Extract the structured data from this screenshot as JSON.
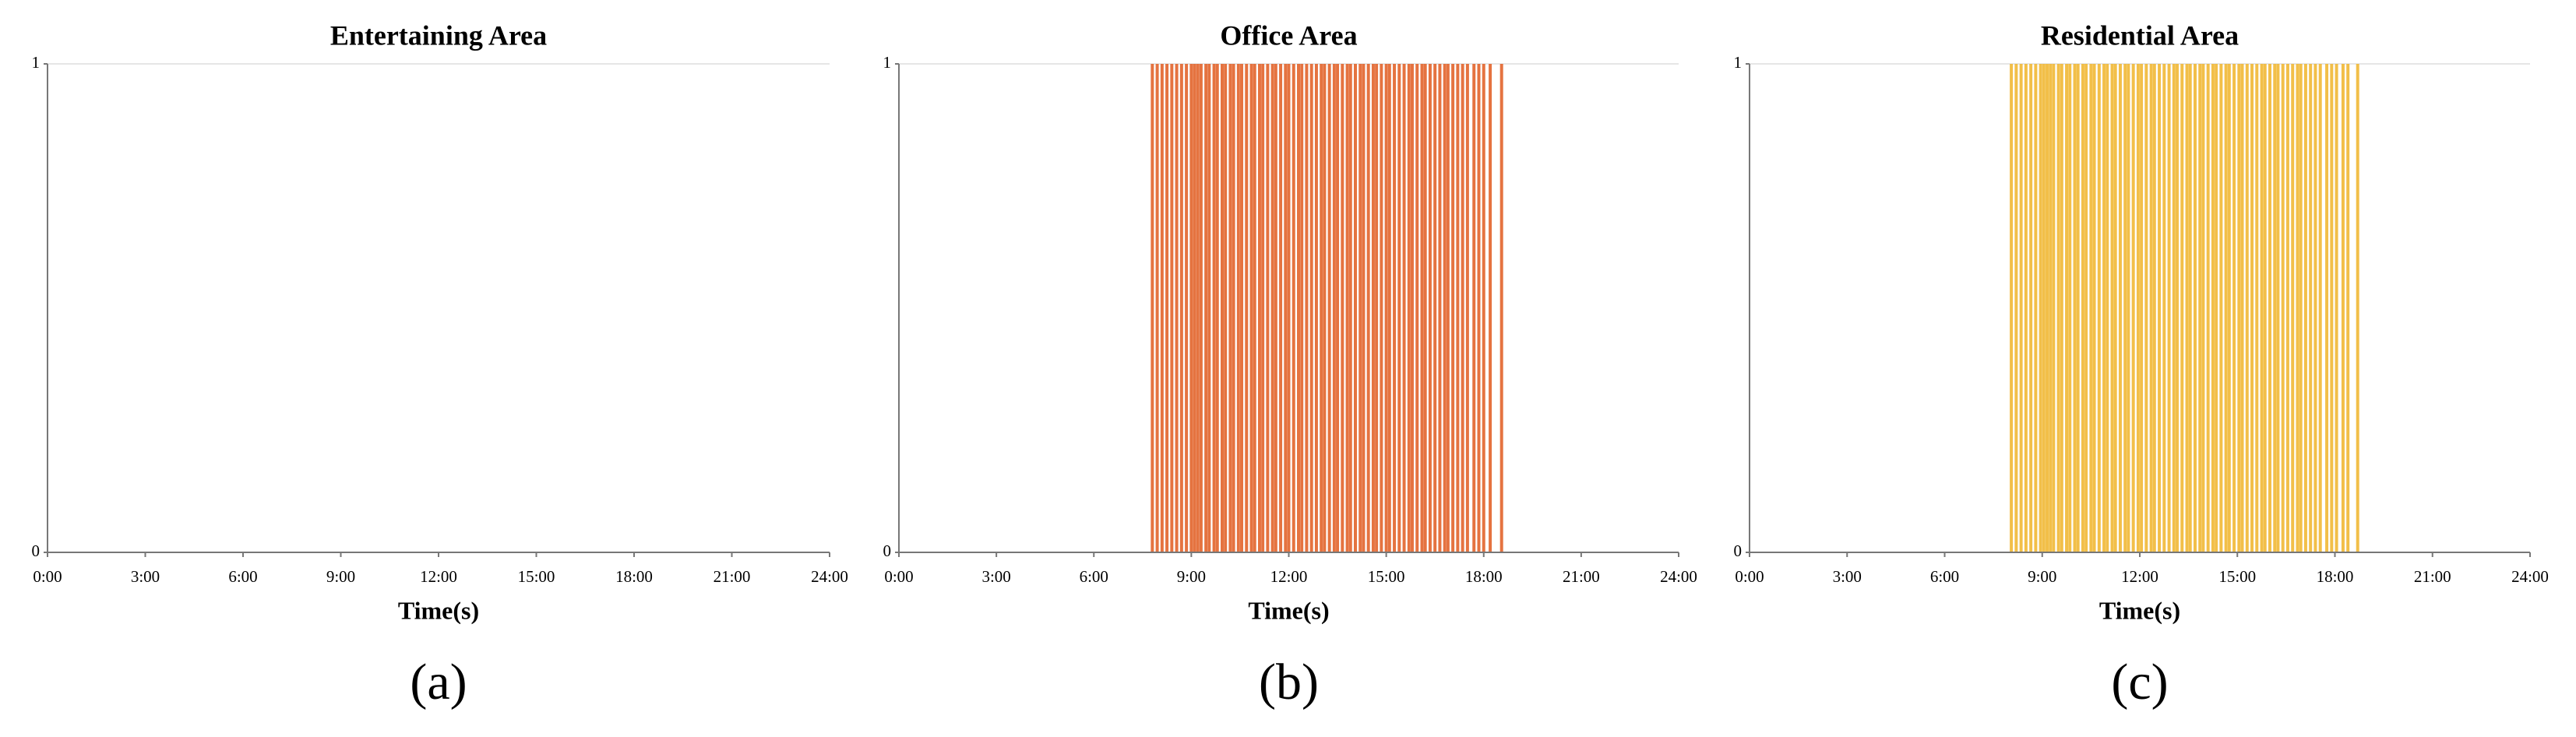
{
  "chart_data": [
    {
      "type": "spike",
      "title": "Entertaining Area",
      "panel_label": "(a)",
      "xlabel": "Time(s)",
      "color": "#e05a1e",
      "x": [],
      "values": [],
      "xlim": [
        0,
        24
      ],
      "xticks": [
        {
          "value": 0,
          "label": "0:00"
        },
        {
          "value": 3,
          "label": "3:00"
        },
        {
          "value": 6,
          "label": "6:00"
        },
        {
          "value": 9,
          "label": "9:00"
        },
        {
          "value": 12,
          "label": "12:00"
        },
        {
          "value": 15,
          "label": "15:00"
        },
        {
          "value": 18,
          "label": "18:00"
        },
        {
          "value": 21,
          "label": "21:00"
        },
        {
          "value": 24,
          "label": "24:00"
        }
      ],
      "ylim": [
        0,
        1
      ],
      "yticks": [
        0,
        1
      ],
      "grid": true
    },
    {
      "type": "spike",
      "title": "Office Area",
      "panel_label": "(b)",
      "xlabel": "Time(s)",
      "color": "#e05a1e",
      "x": [
        7.8,
        7.95,
        8.1,
        8.25,
        8.4,
        8.55,
        8.7,
        8.85,
        9.0,
        9.1,
        9.2,
        9.3,
        9.45,
        9.55,
        9.7,
        9.8,
        9.95,
        10.05,
        10.2,
        10.3,
        10.45,
        10.55,
        10.7,
        10.85,
        10.95,
        11.1,
        11.2,
        11.35,
        11.5,
        11.6,
        11.75,
        11.9,
        12.0,
        12.15,
        12.3,
        12.4,
        12.55,
        12.7,
        12.85,
        13.0,
        13.1,
        13.25,
        13.4,
        13.5,
        13.65,
        13.8,
        13.9,
        14.05,
        14.2,
        14.3,
        14.45,
        14.6,
        14.7,
        14.85,
        15.0,
        15.1,
        15.25,
        15.4,
        15.55,
        15.7,
        15.8,
        15.95,
        16.1,
        16.2,
        16.35,
        16.5,
        16.65,
        16.8,
        16.9,
        17.05,
        17.2,
        17.35,
        17.5,
        17.7,
        17.85,
        18.0,
        18.2,
        18.55
      ],
      "values": [
        1,
        1,
        1,
        1,
        1,
        1,
        1,
        1,
        1,
        1,
        1,
        1,
        1,
        1,
        1,
        1,
        1,
        1,
        1,
        1,
        1,
        1,
        1,
        1,
        1,
        1,
        1,
        1,
        1,
        1,
        1,
        1,
        1,
        1,
        1,
        1,
        1,
        1,
        1,
        1,
        1,
        1,
        1,
        1,
        1,
        1,
        1,
        1,
        1,
        1,
        1,
        1,
        1,
        1,
        1,
        1,
        1,
        1,
        1,
        1,
        1,
        1,
        1,
        1,
        1,
        1,
        1,
        1,
        1,
        1,
        1,
        1,
        1,
        1,
        1,
        1,
        1,
        1
      ],
      "xlim": [
        0,
        24
      ],
      "xticks": [
        {
          "value": 0,
          "label": "0:00"
        },
        {
          "value": 3,
          "label": "3:00"
        },
        {
          "value": 6,
          "label": "6:00"
        },
        {
          "value": 9,
          "label": "9:00"
        },
        {
          "value": 12,
          "label": "12:00"
        },
        {
          "value": 15,
          "label": "15:00"
        },
        {
          "value": 18,
          "label": "18:00"
        },
        {
          "value": 21,
          "label": "21:00"
        },
        {
          "value": 24,
          "label": "24:00"
        }
      ],
      "ylim": [
        0,
        1
      ],
      "yticks": [
        0,
        1
      ],
      "grid": true
    },
    {
      "type": "spike",
      "title": "Residential Area",
      "panel_label": "(c)",
      "xlabel": "Time(s)",
      "color": "#f0b429",
      "x": [
        8.05,
        8.2,
        8.35,
        8.5,
        8.65,
        8.8,
        8.95,
        9.05,
        9.15,
        9.25,
        9.35,
        9.5,
        9.6,
        9.75,
        9.85,
        10.0,
        10.1,
        10.25,
        10.35,
        10.5,
        10.6,
        10.75,
        10.9,
        11.0,
        11.15,
        11.25,
        11.4,
        11.55,
        11.65,
        11.8,
        11.95,
        12.05,
        12.2,
        12.35,
        12.45,
        12.6,
        12.75,
        12.9,
        13.05,
        13.15,
        13.3,
        13.45,
        13.55,
        13.7,
        13.85,
        13.95,
        14.1,
        14.25,
        14.35,
        14.5,
        14.65,
        14.75,
        14.9,
        15.05,
        15.15,
        15.3,
        15.45,
        15.6,
        15.75,
        15.85,
        16.0,
        16.15,
        16.25,
        16.4,
        16.55,
        16.7,
        16.85,
        16.95,
        17.1,
        17.25,
        17.4,
        17.55,
        17.75,
        17.9,
        18.05,
        18.25,
        18.4,
        18.7
      ],
      "values": [
        1,
        1,
        1,
        1,
        1,
        1,
        1,
        1,
        1,
        1,
        1,
        1,
        1,
        1,
        1,
        1,
        1,
        1,
        1,
        1,
        1,
        1,
        1,
        1,
        1,
        1,
        1,
        1,
        1,
        1,
        1,
        1,
        1,
        1,
        1,
        1,
        1,
        1,
        1,
        1,
        1,
        1,
        1,
        1,
        1,
        1,
        1,
        1,
        1,
        1,
        1,
        1,
        1,
        1,
        1,
        1,
        1,
        1,
        1,
        1,
        1,
        1,
        1,
        1,
        1,
        1,
        1,
        1,
        1,
        1,
        1,
        1,
        1,
        1,
        1,
        1,
        1,
        1
      ],
      "xlim": [
        0,
        24
      ],
      "xticks": [
        {
          "value": 0,
          "label": "0:00"
        },
        {
          "value": 3,
          "label": "3:00"
        },
        {
          "value": 6,
          "label": "6:00"
        },
        {
          "value": 9,
          "label": "9:00"
        },
        {
          "value": 12,
          "label": "12:00"
        },
        {
          "value": 15,
          "label": "15:00"
        },
        {
          "value": 18,
          "label": "18:00"
        },
        {
          "value": 21,
          "label": "21:00"
        },
        {
          "value": 24,
          "label": "24:00"
        }
      ],
      "ylim": [
        0,
        1
      ],
      "yticks": [
        0,
        1
      ],
      "grid": true
    }
  ]
}
